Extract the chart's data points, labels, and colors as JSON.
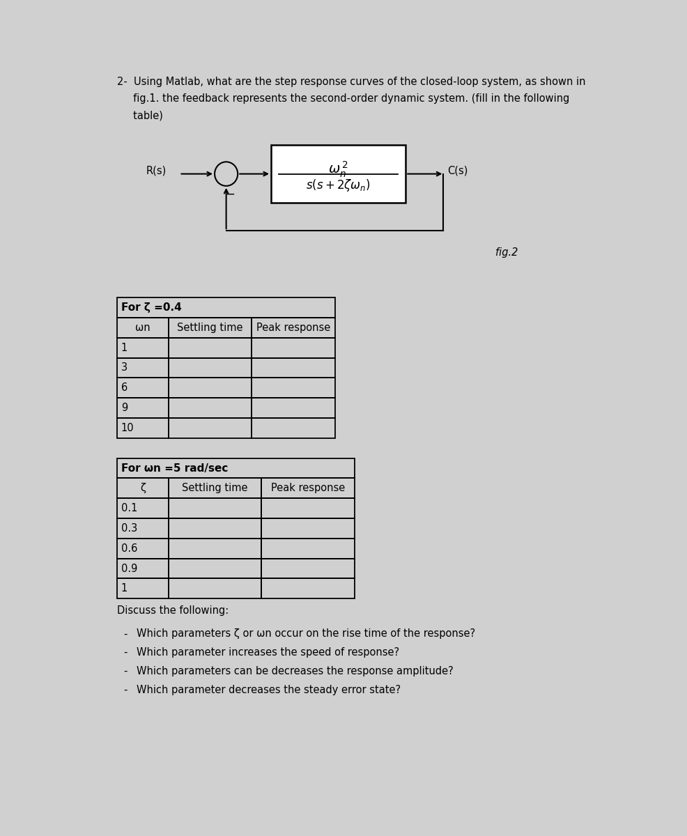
{
  "question_line1": "2-  Using Matlab, what are the step response curves of the closed-loop system, as shown in",
  "question_line2": "     fig.1. the feedback represents the second-order dynamic system. (fill in the following",
  "question_line3": "     table)",
  "fig_label": "fig.2",
  "R_label": "R(s)",
  "C_label": "C(s)",
  "table1_title": "For ζ =0.4",
  "table1_col1": "ωn",
  "table1_col2": "Settling time",
  "table1_col3": "Peak response",
  "table1_rows": [
    "1",
    "3",
    "6",
    "9",
    "10"
  ],
  "table2_title": "For ωn =5 rad/sec",
  "table2_col1": "ζ",
  "table2_col2": "Settling time",
  "table2_col3": "Peak response",
  "table2_rows": [
    "0.1",
    "0.3",
    "0.6",
    "0.9",
    "1"
  ],
  "discuss_title": "Discuss the following:",
  "discuss_items": [
    "Which parameters ζ or ωn occur on the rise time of the response?",
    "Which parameter increases the speed of response?",
    "Which parameters can be decreases the response amplitude?",
    "Which parameter decreases the steady error state?"
  ],
  "bg_color": "#d0d0d0",
  "page_color": "#ffffff",
  "text_color": "#000000"
}
